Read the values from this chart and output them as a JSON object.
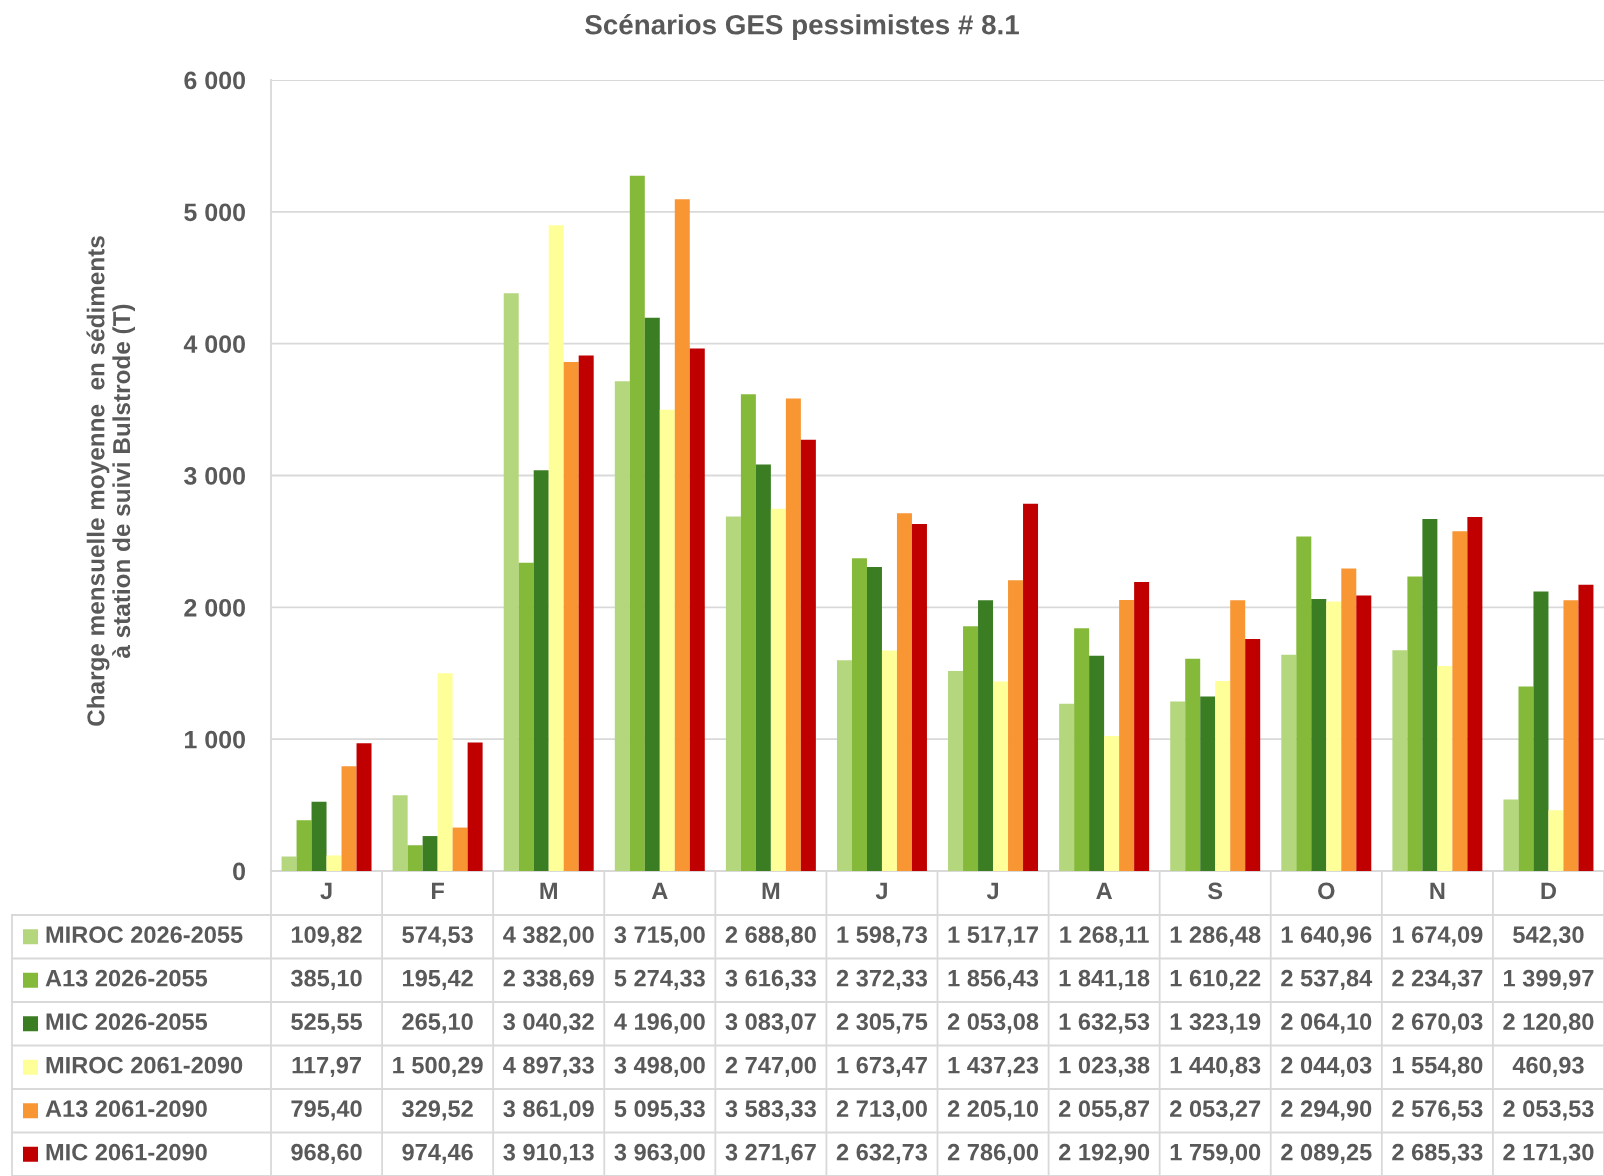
{
  "chart_data": {
    "type": "bar",
    "title": "Scénarios GES pessimistes # 8.1",
    "ylabel": "Charge mensuelle moyenne  en sédiments\nà station de suivi Bulstrode (T)",
    "categories": [
      "J",
      "F",
      "M",
      "A",
      "M",
      "J",
      "J",
      "A",
      "S",
      "O",
      "N",
      "D"
    ],
    "series": [
      {
        "name": "MIROC 2026-2055",
        "color": "#b4d67c",
        "values": [
          109.82,
          574.53,
          4382.0,
          3715.0,
          2688.8,
          1598.73,
          1517.17,
          1268.11,
          1286.48,
          1640.96,
          1674.09,
          542.3
        ],
        "value_labels": [
          "109,82",
          "574,53",
          "4 382,00",
          "3 715,00",
          "2 688,80",
          "1 598,73",
          "1 517,17",
          "1 268,11",
          "1 286,48",
          "1 640,96",
          "1 674,09",
          "542,30"
        ]
      },
      {
        "name": "A13 2026-2055",
        "color": "#85b93a",
        "values": [
          385.1,
          195.42,
          2338.69,
          5274.33,
          3616.33,
          2372.33,
          1856.43,
          1841.18,
          1610.22,
          2537.84,
          2234.37,
          1399.97
        ],
        "value_labels": [
          "385,10",
          "195,42",
          "2 338,69",
          "5 274,33",
          "3 616,33",
          "2 372,33",
          "1 856,43",
          "1 841,18",
          "1 610,22",
          "2 537,84",
          "2 234,37",
          "1 399,97"
        ]
      },
      {
        "name": "MIC 2026-2055",
        "color": "#3b7d23",
        "values": [
          525.55,
          265.1,
          3040.32,
          4196.0,
          3083.07,
          2305.75,
          2053.08,
          1632.53,
          1323.19,
          2064.1,
          2670.03,
          2120.8
        ],
        "value_labels": [
          "525,55",
          "265,10",
          "3 040,32",
          "4 196,00",
          "3 083,07",
          "2 305,75",
          "2 053,08",
          "1 632,53",
          "1 323,19",
          "2 064,10",
          "2 670,03",
          "2 120,80"
        ]
      },
      {
        "name": "MIROC 2061-2090",
        "color": "#ffff99",
        "values": [
          117.97,
          1500.29,
          4897.33,
          3498.0,
          2747.0,
          1673.47,
          1437.23,
          1023.38,
          1440.83,
          2044.03,
          1554.8,
          460.93
        ],
        "value_labels": [
          "117,97",
          "1 500,29",
          "4 897,33",
          "3 498,00",
          "2 747,00",
          "1 673,47",
          "1 437,23",
          "1 023,38",
          "1 440,83",
          "2 044,03",
          "1 554,80",
          "460,93"
        ]
      },
      {
        "name": "A13 2061-2090",
        "color": "#f79633",
        "values": [
          795.4,
          329.52,
          3861.09,
          5095.33,
          3583.33,
          2713.0,
          2205.1,
          2055.87,
          2053.27,
          2294.9,
          2576.53,
          2053.53
        ],
        "value_labels": [
          "795,40",
          "329,52",
          "3 861,09",
          "5 095,33",
          "3 583,33",
          "2 713,00",
          "2 205,10",
          "2 055,87",
          "2 053,27",
          "2 294,90",
          "2 576,53",
          "2 053,53"
        ]
      },
      {
        "name": "MIC 2061-2090",
        "color": "#c00000",
        "values": [
          968.6,
          974.46,
          3910.13,
          3963.0,
          3271.67,
          2632.73,
          2786.0,
          2192.9,
          1759.0,
          2089.25,
          2685.33,
          2171.3
        ],
        "value_labels": [
          "968,60",
          "974,46",
          "3 910,13",
          "3 963,00",
          "3 271,67",
          "2 632,73",
          "2 786,00",
          "2 192,90",
          "1 759,00",
          "2 089,25",
          "2 685,33",
          "2 171,30"
        ]
      }
    ],
    "ylim": [
      0,
      6000
    ],
    "yticks": [
      {
        "value": 0,
        "label": "0"
      },
      {
        "value": 1000,
        "label": "1 000"
      },
      {
        "value": 2000,
        "label": "2 000"
      },
      {
        "value": 3000,
        "label": "3 000"
      },
      {
        "value": 4000,
        "label": "4 000"
      },
      {
        "value": 5000,
        "label": "5 000"
      },
      {
        "value": 6000,
        "label": "6 000"
      }
    ],
    "grid": "y",
    "legend": "bottom"
  }
}
